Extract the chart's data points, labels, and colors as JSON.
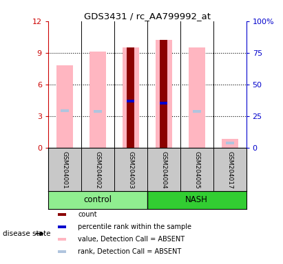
{
  "title": "GDS3431 / rc_AA799992_at",
  "samples": [
    "GSM204001",
    "GSM204002",
    "GSM204003",
    "GSM204004",
    "GSM204005",
    "GSM204017"
  ],
  "groups": [
    "control",
    "control",
    "control",
    "NASH",
    "NASH",
    "NASH"
  ],
  "group_labels": [
    "control",
    "NASH"
  ],
  "group_colors_light": "#90EE90",
  "group_colors_dark": "#32CD32",
  "ylim_left": [
    0,
    12
  ],
  "ylim_right": [
    0,
    100
  ],
  "yticks_left": [
    0,
    3,
    6,
    9,
    12
  ],
  "yticks_right": [
    0,
    25,
    50,
    75,
    100
  ],
  "ytick_labels_right": [
    "0",
    "25",
    "50",
    "75",
    "100%"
  ],
  "bar_width": 0.5,
  "pink_values": [
    7.8,
    9.1,
    9.5,
    10.2,
    9.5,
    0.8
  ],
  "pink_color": "#FFB6C1",
  "dark_red_values": [
    0,
    0,
    9.5,
    10.2,
    0,
    0
  ],
  "dark_red_color": "#8B0000",
  "blue_rank_vals": [
    4.4,
    3.4,
    4.4,
    4.2,
    3.4,
    0.45
  ],
  "blue_rank_color": "#0000CD",
  "light_blue_vals": [
    3.5,
    3.4,
    0,
    0,
    3.4,
    0.4
  ],
  "light_blue_color": "#B0C4DE",
  "background_color": "#ffffff",
  "left_tick_color": "#CC0000",
  "right_tick_color": "#0000CC",
  "disease_state_label": "disease state",
  "sample_bg_color": "#C8C8C8",
  "legend_items": [
    {
      "label": "count",
      "color": "#8B0000"
    },
    {
      "label": "percentile rank within the sample",
      "color": "#0000CD"
    },
    {
      "label": "value, Detection Call = ABSENT",
      "color": "#FFB6C1"
    },
    {
      "label": "rank, Detection Call = ABSENT",
      "color": "#B0C4DE"
    }
  ]
}
